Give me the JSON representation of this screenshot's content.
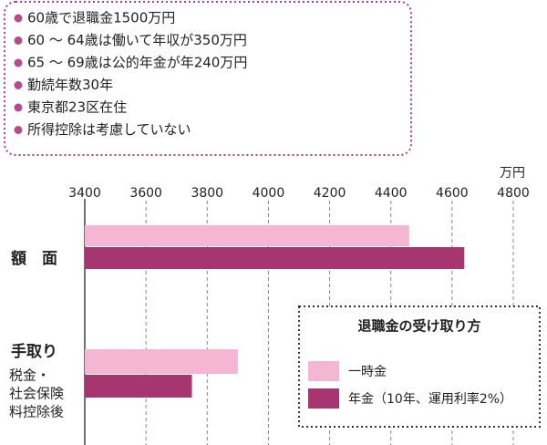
{
  "chart_data": {
    "type": "bar",
    "orientation": "horizontal",
    "notes": [
      "60歳で退職金1500万円",
      "60 ～ 64歳は働いて年収が350万円",
      "65 ～ 69歳は公的年金が年240万円",
      "勤続年数30年",
      "東京都23区在住",
      "所得控除は考慮していない"
    ],
    "unit": "万円",
    "categories": [
      "額　面",
      "手取り"
    ],
    "annotations": [
      "税金・",
      "社会保険",
      "料控除後"
    ],
    "legend_title": "退職金の受け取り方",
    "series": [
      {
        "name": "一時金",
        "color": "#f5b6d3",
        "values": [
          4460,
          3900
        ]
      },
      {
        "name": "年金（10年、運用利率2%）",
        "color": "#a73670",
        "values": [
          4640,
          3750
        ]
      }
    ],
    "xlim": [
      3400,
      4800
    ],
    "xticks": [
      3400,
      3600,
      3800,
      4000,
      4200,
      4400,
      4600,
      4800
    ],
    "grid": true
  }
}
